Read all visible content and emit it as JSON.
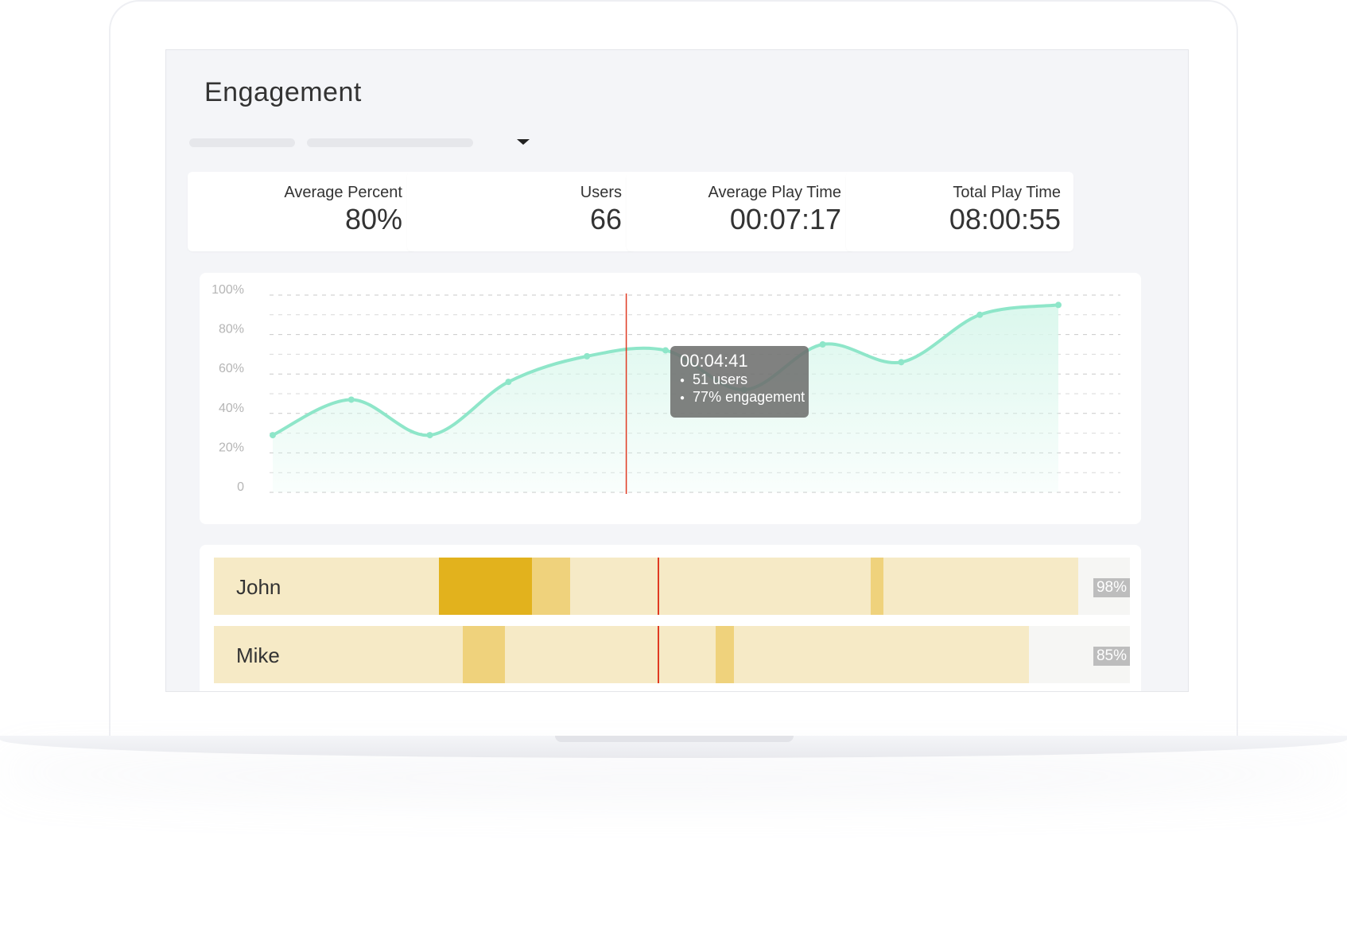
{
  "page": {
    "title": "Engagement"
  },
  "stats": [
    {
      "label": "Average Percent",
      "value": "80%"
    },
    {
      "label": "Users",
      "value": "66"
    },
    {
      "label": "Average Play Time",
      "value": "00:07:17"
    },
    {
      "label": "Total Play Time",
      "value": "08:00:55"
    }
  ],
  "chart_data": {
    "type": "area",
    "y_ticks": [
      "100%",
      "80%",
      "60%",
      "40%",
      "20%",
      "0"
    ],
    "ylim": [
      0,
      100
    ],
    "grid": true,
    "points": [
      {
        "x": 0,
        "y": 29
      },
      {
        "x": 1,
        "y": 47
      },
      {
        "x": 2,
        "y": 29
      },
      {
        "x": 3,
        "y": 56
      },
      {
        "x": 4,
        "y": 69
      },
      {
        "x": 5,
        "y": 72
      },
      {
        "x": 6,
        "y": 52
      },
      {
        "x": 7,
        "y": 75
      },
      {
        "x": 8,
        "y": 66
      },
      {
        "x": 9,
        "y": 90
      },
      {
        "x": 10,
        "y": 95
      }
    ],
    "cursor_x": 4.5,
    "colors": {
      "line": "#8ee6c9",
      "fill": "#d9f7ec",
      "cursor": "#e03a22",
      "grid": "#c9c9c9",
      "tick": "#b5b5b5"
    }
  },
  "tooltip": {
    "time": "00:04:41",
    "items": [
      "51 users",
      "77% engagement"
    ]
  },
  "timeline": {
    "cursor_fraction": 0.484,
    "colors": {
      "track": "#f6eac6",
      "light": "#efd27c",
      "strong": "#e2b21d",
      "remainder": "#f6f6f4",
      "pct_bg": "#bdbdbd"
    },
    "rows": [
      {
        "name": "John",
        "percent": "98%",
        "played_fraction": 0.944,
        "segments": [
          {
            "start": 0.2455,
            "end": 0.3475,
            "level": "strong"
          },
          {
            "start": 0.3475,
            "end": 0.389,
            "level": "light"
          },
          {
            "start": 0.717,
            "end": 0.731,
            "level": "light"
          }
        ]
      },
      {
        "name": "Mike",
        "percent": "85%",
        "played_fraction": 0.89,
        "segments": [
          {
            "start": 0.272,
            "end": 0.318,
            "level": "light"
          },
          {
            "start": 0.548,
            "end": 0.568,
            "level": "light"
          }
        ]
      }
    ]
  }
}
